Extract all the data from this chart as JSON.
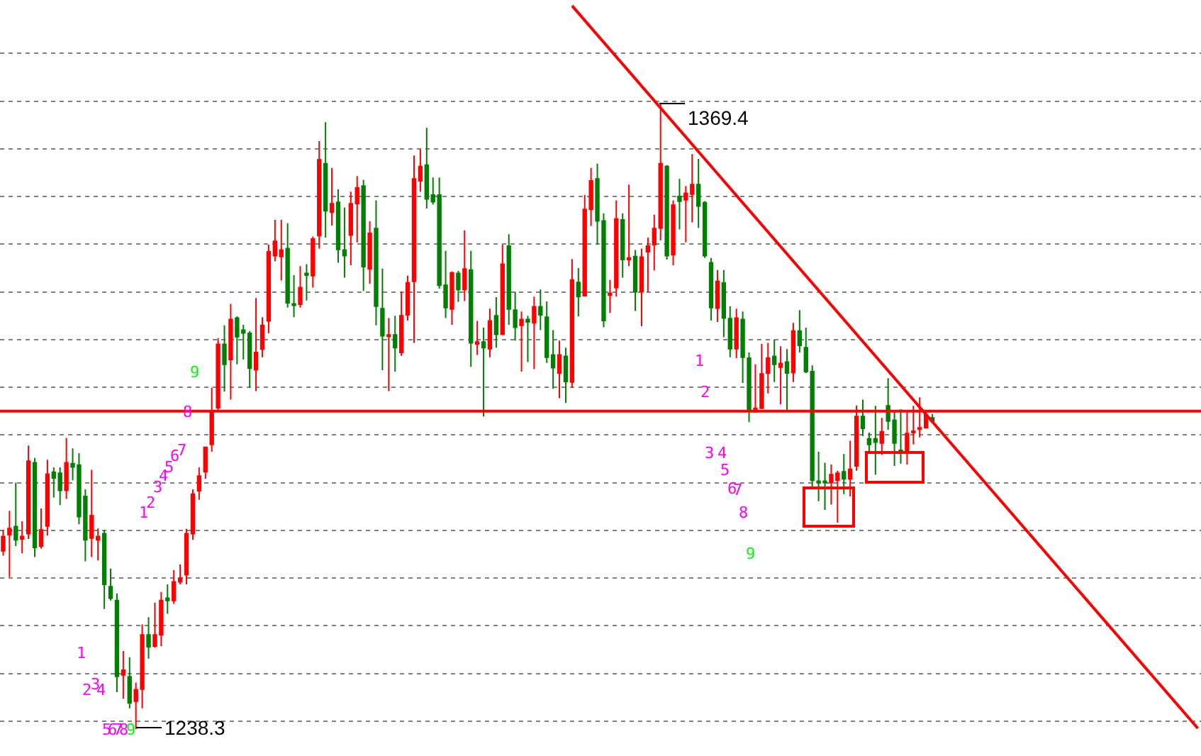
{
  "chart_data": {
    "type": "candlestick",
    "categories": [
      null,
      null,
      null,
      null,
      null,
      null,
      null,
      null,
      null,
      null,
      null,
      null,
      null,
      null,
      null,
      null,
      null,
      null,
      null,
      null,
      null,
      null,
      null,
      null,
      null,
      null,
      null,
      null,
      null,
      null,
      null,
      null,
      null,
      null,
      null,
      null,
      null,
      null,
      null,
      null,
      null,
      null,
      null,
      null,
      null,
      null,
      null,
      null,
      null,
      null,
      null,
      null,
      null,
      null,
      null,
      null,
      null,
      null,
      null,
      null,
      null,
      null,
      null,
      null,
      null,
      null,
      null,
      null,
      null,
      null,
      null,
      null,
      null,
      null,
      null,
      null,
      null,
      null,
      null,
      null,
      null,
      null,
      null,
      null,
      null,
      null,
      null,
      null,
      null,
      null,
      null,
      null,
      null,
      null,
      null,
      null,
      null,
      null,
      null,
      null,
      null,
      null,
      null,
      null,
      null,
      null,
      null,
      null,
      null,
      null,
      null,
      null,
      null,
      null,
      null,
      null,
      null,
      null,
      null,
      null,
      null,
      null,
      null,
      null,
      null,
      null,
      null,
      null,
      null,
      null,
      null,
      null,
      null,
      null,
      null,
      null,
      null,
      null,
      null,
      null,
      null,
      null,
      null,
      null,
      null,
      null,
      null,
      null,
      null,
      null,
      null,
      null,
      null,
      null,
      null,
      null,
      null,
      null,
      null,
      null,
      null,
      null,
      null,
      null,
      null,
      null,
      null,
      null,
      null,
      null,
      null,
      null,
      null,
      null,
      null,
      null,
      null,
      null,
      null,
      null,
      null,
      null,
      null,
      null,
      null,
      null,
      null,
      null,
      null,
      null
    ],
    "ylim": [
      1232.7,
      1391.2
    ],
    "yticks": [
      {
        "value": 1240,
        "label": null
      },
      {
        "value": 1250,
        "label": null
      },
      {
        "value": 1260,
        "label": null
      },
      {
        "value": 1270,
        "label": null
      },
      {
        "value": 1280,
        "label": null
      },
      {
        "value": 1290,
        "label": null
      },
      {
        "value": 1300,
        "label": null
      },
      {
        "value": 1310,
        "label": null
      },
      {
        "value": 1320,
        "label": null
      },
      {
        "value": 1330,
        "label": null
      },
      {
        "value": 1340,
        "label": null
      },
      {
        "value": 1350,
        "label": null
      },
      {
        "value": 1360,
        "label": null
      },
      {
        "value": 1370,
        "label": null
      },
      {
        "value": 1380,
        "label": null
      }
    ],
    "grid": "y",
    "colors": [
      "#ff0000",
      "#ff0000",
      "#008000",
      "#ff0000",
      "#ff0000",
      "#008000",
      "#ff0000",
      "#ff0000",
      "#008000",
      "#008000",
      "#ff0000",
      "#008000",
      "#008000",
      "#008000",
      "#ff0000",
      "#ff0000",
      "#008000",
      "#008000",
      "#008000",
      "#ff0000",
      "#008000",
      "#ff0000",
      "#ff0000",
      "#008000",
      "#ff0000",
      "#ff0000",
      "#008000",
      "#ff0000",
      "#ff0000",
      "#ff0000",
      "#ff0000",
      "#ff0000",
      "#ff0000",
      "#ff0000",
      "#ff0000",
      "#008000",
      "#ff0000",
      "#008000",
      "#008000",
      "#008000",
      "#ff0000",
      "#ff0000",
      "#ff0000",
      "#ff0000",
      "#ff0000",
      "#008000",
      "#008000",
      "#ff0000",
      "#008000",
      "#ff0000",
      "#ff0000",
      "#008000",
      "#ff0000",
      "#008000",
      "#008000",
      "#ff0000",
      "#ff0000",
      "#008000",
      "#ff0000",
      "#008000",
      "#008000",
      "#ff0000",
      "#008000",
      "#ff0000",
      "#ff0000",
      "#ff0000",
      "#ff0000",
      "#008000",
      "#008000",
      "#008000",
      "#008000",
      "#ff0000",
      "#008000",
      "#ff0000",
      "#008000",
      "#ff0000",
      "#008000",
      "#ff0000",
      "#008000",
      "#ff0000",
      "#008000",
      "#008000",
      "#ff0000",
      "#008000",
      "#ff0000",
      "#008000",
      "#008000",
      "#008000",
      "#ff0000",
      "#008000",
      "#ff0000",
      "#008000",
      "#ff0000",
      "#ff0000",
      "#008000",
      "#008000",
      "#ff0000",
      "#ff0000",
      "#008000",
      "#ff0000",
      "#008000",
      "#ff0000",
      "#ff0000",
      "#ff0000",
      "#ff0000",
      "#008000",
      "#ff0000",
      "#008000",
      "#ff0000",
      "#ff0000",
      "#008000",
      "#008000",
      "#008000",
      "#ff0000",
      "#008000",
      "#008000",
      "#ff0000",
      "#008000",
      "#008000",
      "#ff0000",
      "#ff0000",
      "#ff0000",
      "#008000",
      "#ff0000",
      "#008000",
      "#ff0000",
      "#008000",
      "#008000",
      "#008000",
      "#008000",
      "#008000",
      "#ff0000",
      "#ff0000",
      "#008000",
      "#ff0000",
      "#ff0000",
      "#008000",
      "#008000",
      "#008000",
      "#ff0000",
      "#008000",
      "#008000",
      "#008000",
      "#ff0000",
      "#ff0000",
      "#ff0000",
      "#ff0000",
      "#008000",
      null,
      null,
      null,
      null,
      null,
      null,
      null,
      null,
      null,
      null,
      null,
      null,
      null,
      null,
      null,
      null,
      null,
      null,
      null,
      null,
      null,
      null,
      null,
      null,
      null,
      null,
      null,
      null,
      null,
      null,
      null,
      null,
      null,
      null,
      null,
      null,
      null,
      null,
      null,
      null,
      null,
      null
    ],
    "ohlc": [
      [
        1275.7,
        1280.1,
        1274.7,
        1278.7
      ],
      [
        1279.1,
        1284.1,
        1270.2,
        1280.4
      ],
      [
        1280.8,
        1290.0,
        1276.7,
        1278.0
      ],
      [
        1278.2,
        1281.9,
        1275.2,
        1278.7
      ],
      [
        1279.3,
        1297.8,
        1278.2,
        1294.5
      ],
      [
        1294.2,
        1295.2,
        1274.4,
        1276.4
      ],
      [
        1276.7,
        1284.6,
        1276.2,
        1280.1
      ],
      [
        1280.9,
        1294.8,
        1278.9,
        1291.8
      ],
      [
        1292.2,
        1293.2,
        1286.9,
        1291.0
      ],
      [
        1292.0,
        1293.2,
        1285.3,
        1288.4
      ],
      [
        1288.4,
        1299.4,
        1286.6,
        1294.2
      ],
      [
        1294.0,
        1297.2,
        1290.5,
        1293.3
      ],
      [
        1293.7,
        1296.2,
        1281.3,
        1282.9
      ],
      [
        1287.1,
        1288.6,
        1273.5,
        1278.0
      ],
      [
        1278.4,
        1292.7,
        1274.4,
        1283.1
      ],
      [
        1278.0,
        1280.4,
        1273.7,
        1278.7
      ],
      [
        1279.3,
        1280.1,
        1263.5,
        1268.7
      ],
      [
        1268.2,
        1272.0,
        1265.3,
        1265.8
      ],
      [
        1265.3,
        1266.8,
        1246.1,
        1249.4
      ],
      [
        1249.7,
        1254.7,
        1244.7,
        1250.7
      ],
      [
        1249.3,
        1253.4,
        1242.7,
        1243.8
      ],
      [
        1244.2,
        1248.1,
        1238.3,
        1246.6
      ],
      [
        1246.7,
        1260.3,
        1242.7,
        1258.1
      ],
      [
        1258.1,
        1261.8,
        1253.1,
        1255.6
      ],
      [
        1255.7,
        1264.8,
        1255.4,
        1258.1
      ],
      [
        1258.1,
        1267.1,
        1255.7,
        1265.3
      ],
      [
        1265.8,
        1268.7,
        1262.5,
        1265.3
      ],
      [
        1265.3,
        1271.7,
        1264.6,
        1269.2
      ],
      [
        1269.2,
        1272.9,
        1268.7,
        1270.0
      ],
      [
        1270.7,
        1280.3,
        1268.7,
        1279.3
      ],
      [
        1279.3,
        1288.6,
        1278.0,
        1287.6
      ],
      [
        1288.3,
        1293.2,
        1286.4,
        1291.4
      ],
      [
        1292.3,
        1297.4,
        1290.8,
        1297.4
      ],
      [
        1298.0,
        1309.9,
        1296.5,
        1304.9
      ],
      [
        1305.7,
        1320.3,
        1304.9,
        1319.0
      ],
      [
        1319.0,
        1323.0,
        1309.1,
        1314.8
      ],
      [
        1315.8,
        1327.5,
        1307.4,
        1324.2
      ],
      [
        1324.5,
        1324.9,
        1314.8,
        1320.6
      ],
      [
        1322.0,
        1323.1,
        1315.8,
        1321.4
      ],
      [
        1321.3,
        1321.8,
        1309.9,
        1314.0
      ],
      [
        1313.7,
        1328.7,
        1309.2,
        1317.3
      ],
      [
        1318.0,
        1324.7,
        1316.3,
        1323.0
      ],
      [
        1323.9,
        1339.9,
        1321.3,
        1338.4
      ],
      [
        1337.6,
        1345.1,
        1336.4,
        1340.6
      ],
      [
        1337.4,
        1345.1,
        1332.4,
        1338.8
      ],
      [
        1339.1,
        1344.4,
        1326.7,
        1327.7
      ],
      [
        1327.5,
        1333.5,
        1324.7,
        1327.2
      ],
      [
        1327.4,
        1335.4,
        1326.7,
        1330.9
      ],
      [
        1333.9,
        1335.8,
        1328.2,
        1333.5
      ],
      [
        1333.4,
        1341.6,
        1330.9,
        1341.1
      ],
      [
        1341.8,
        1361.6,
        1339.1,
        1357.7
      ],
      [
        1356.9,
        1365.6,
        1341.4,
        1347.0
      ],
      [
        1346.7,
        1356.0,
        1343.9,
        1348.5
      ],
      [
        1348.8,
        1351.5,
        1336.1,
        1338.9
      ],
      [
        1338.8,
        1347.7,
        1333.0,
        1337.6
      ],
      [
        1341.9,
        1351.0,
        1335.6,
        1348.5
      ],
      [
        1348.5,
        1354.3,
        1340.4,
        1351.8
      ],
      [
        1352.2,
        1353.5,
        1330.2,
        1335.3
      ],
      [
        1334.8,
        1344.8,
        1331.7,
        1342.3
      ],
      [
        1343.3,
        1349.2,
        1323.0,
        1327.0
      ],
      [
        1326.5,
        1334.9,
        1313.6,
        1320.8
      ],
      [
        1320.7,
        1324.5,
        1309.2,
        1321.0
      ],
      [
        1321.0,
        1325.0,
        1313.3,
        1318.3
      ],
      [
        1317.3,
        1330.0,
        1316.6,
        1325.0
      ],
      [
        1325.2,
        1333.4,
        1324.0,
        1331.9
      ],
      [
        1332.2,
        1358.6,
        1319.3,
        1353.7
      ],
      [
        1353.3,
        1359.9,
        1351.0,
        1356.3
      ],
      [
        1356.6,
        1364.4,
        1347.5,
        1349.5
      ],
      [
        1350.3,
        1354.0,
        1348.3,
        1348.9
      ],
      [
        1350.3,
        1354.0,
        1330.7,
        1331.4
      ],
      [
        1331.4,
        1338.6,
        1324.5,
        1326.7
      ],
      [
        1326.4,
        1334.3,
        1323.1,
        1334.0
      ],
      [
        1333.9,
        1334.4,
        1327.9,
        1330.5
      ],
      [
        1330.5,
        1342.9,
        1328.1,
        1334.8
      ],
      [
        1334.6,
        1338.6,
        1314.3,
        1319.3
      ],
      [
        1319.1,
        1323.9,
        1316.8,
        1319.5
      ],
      [
        1319.5,
        1322.5,
        1303.9,
        1318.3
      ],
      [
        1318.1,
        1326.5,
        1316.3,
        1323.9
      ],
      [
        1325.0,
        1328.9,
        1318.3,
        1321.1
      ],
      [
        1321.1,
        1339.9,
        1321.1,
        1335.8
      ],
      [
        1339.6,
        1342.1,
        1323.1,
        1326.4
      ],
      [
        1326.2,
        1330.0,
        1319.8,
        1322.6
      ],
      [
        1323.0,
        1325.9,
        1313.3,
        1324.2
      ],
      [
        1324.2,
        1325.0,
        1315.3,
        1323.7
      ],
      [
        1323.5,
        1329.0,
        1313.8,
        1326.9
      ],
      [
        1326.9,
        1330.5,
        1322.0,
        1325.2
      ],
      [
        1324.7,
        1328.0,
        1315.1,
        1316.3
      ],
      [
        1316.8,
        1322.0,
        1309.7,
        1314.1
      ],
      [
        1313.0,
        1319.8,
        1307.7,
        1316.8
      ],
      [
        1316.5,
        1318.3,
        1306.7,
        1311.2
      ],
      [
        1311.1,
        1336.9,
        1309.9,
        1332.5
      ],
      [
        1332.0,
        1335.0,
        1324.9,
        1329.0
      ],
      [
        1329.2,
        1350.3,
        1329.2,
        1347.3
      ],
      [
        1347.3,
        1356.0,
        1343.8,
        1353.3
      ],
      [
        1353.7,
        1356.9,
        1339.9,
        1344.9
      ],
      [
        1344.9,
        1346.5,
        1322.6,
        1324.0
      ],
      [
        1329.3,
        1332.5,
        1325.6,
        1329.7
      ],
      [
        1330.9,
        1349.2,
        1329.0,
        1345.3
      ],
      [
        1345.1,
        1346.5,
        1333.0,
        1336.8
      ],
      [
        1336.8,
        1352.5,
        1335.4,
        1337.1
      ],
      [
        1337.4,
        1338.8,
        1326.0,
        1330.0
      ],
      [
        1330.0,
        1339.1,
        1322.8,
        1337.3
      ],
      [
        1338.4,
        1341.4,
        1330.0,
        1339.6
      ],
      [
        1339.9,
        1346.2,
        1334.5,
        1343.3
      ],
      [
        1343.4,
        1369.4,
        1340.8,
        1356.9
      ],
      [
        1356.3,
        1356.6,
        1336.8,
        1337.6
      ],
      [
        1337.8,
        1349.2,
        1335.6,
        1348.2
      ],
      [
        1350.0,
        1353.7,
        1343.1,
        1349.0
      ],
      [
        1349.3,
        1352.2,
        1340.4,
        1350.7
      ],
      [
        1350.5,
        1358.9,
        1344.6,
        1352.5
      ],
      [
        1352.5,
        1357.9,
        1343.4,
        1348.0
      ],
      [
        1348.7,
        1349.0,
        1337.1,
        1337.6
      ],
      [
        1336.1,
        1337.1,
        1324.0,
        1326.7
      ],
      [
        1326.6,
        1334.6,
        1323.7,
        1332.2
      ],
      [
        1331.9,
        1334.6,
        1320.5,
        1324.5
      ],
      [
        1324.4,
        1327.0,
        1316.3,
        1318.1
      ],
      [
        1318.1,
        1326.5,
        1316.1,
        1324.5
      ],
      [
        1324.2,
        1325.9,
        1310.9,
        1316.3
      ],
      [
        1316.1,
        1317.3,
        1302.7,
        1305.1
      ],
      [
        1304.9,
        1314.8,
        1304.9,
        1305.6
      ],
      [
        1305.6,
        1319.1,
        1305.6,
        1312.8
      ],
      [
        1313.0,
        1319.3,
        1308.7,
        1316.1
      ],
      [
        1316.5,
        1320.0,
        1311.1,
        1314.8
      ],
      [
        1314.2,
        1318.6,
        1306.4,
        1315.0
      ],
      [
        1315.3,
        1318.0,
        1304.9,
        1313.0
      ],
      [
        1313.1,
        1323.5,
        1311.1,
        1321.8
      ],
      [
        1321.8,
        1326.2,
        1317.3,
        1318.8
      ],
      [
        1318.3,
        1322.5,
        1313.0,
        1313.3
      ],
      [
        1313.3,
        1314.6,
        1289.1,
        1290.5
      ],
      [
        1290.3,
        1296.5,
        1286.1,
        1290.0
      ],
      [
        1290.3,
        1294.2,
        1284.3,
        1290.0
      ],
      [
        1290.0,
        1293.8,
        1285.4,
        1291.7
      ],
      [
        1290.5,
        1292.5,
        1281.6,
        1292.0
      ],
      [
        1292.3,
        1296.0,
        1287.6,
        1290.8
      ],
      [
        1290.8,
        1298.8,
        1287.1,
        1292.8
      ],
      [
        1293.5,
        1306.2,
        1292.5,
        1303.9
      ],
      [
        1303.9,
        1307.4,
        1299.8,
        1301.4
      ],
      [
        1299.2,
        1300.5,
        1296.2,
        1298.0
      ],
      [
        1299.2,
        1306.1,
        1291.7,
        1298.5
      ],
      [
        1298.3,
        1303.6,
        1295.8,
        1300.7
      ],
      [
        1306.1,
        1311.9,
        1301.1,
        1302.9
      ],
      [
        1303.1,
        1304.9,
        1293.5,
        1298.3
      ],
      [
        1296.8,
        1305.4,
        1294.0,
        1296.3
      ],
      [
        1296.8,
        1304.9,
        1293.8,
        1300.3
      ],
      [
        1300.5,
        1306.1,
        1298.0,
        1300.8
      ],
      [
        1301.2,
        1307.9,
        1299.5,
        1301.5
      ],
      [
        1301.5,
        1305.2,
        1301.5,
        1304.2
      ],
      [
        1303.6,
        1304.4,
        1302.7,
        1302.9
      ],
      null,
      null,
      null,
      null,
      null,
      null,
      null,
      null,
      null,
      null,
      null,
      null,
      null,
      null,
      null,
      null,
      null,
      null,
      null,
      null,
      null,
      null,
      null,
      null,
      null,
      null,
      null,
      null,
      null,
      null,
      null,
      null,
      null,
      null,
      null,
      null,
      null,
      null,
      null,
      null,
      null,
      null
    ],
    "series": [
      {
        "type": "line",
        "color": "#ff0000",
        "values": [
          null,
          null,
          null,
          null,
          null,
          null,
          null,
          null,
          null,
          null,
          null,
          null,
          null,
          null,
          null,
          null,
          null,
          null,
          null,
          null,
          null,
          null,
          null,
          null,
          null,
          null,
          null,
          null,
          null,
          null,
          null,
          null,
          null,
          null,
          null,
          null,
          null,
          null,
          null,
          null,
          null,
          null,
          null,
          null,
          null,
          null,
          null,
          null,
          null,
          null,
          null,
          null,
          null,
          null,
          null,
          null,
          null,
          null,
          null,
          null,
          null,
          null,
          null,
          null,
          null,
          null,
          null,
          null,
          null,
          null,
          null,
          null,
          null,
          null,
          null,
          null,
          null,
          null,
          null,
          null,
          null,
          null,
          null,
          null,
          null,
          null,
          null,
          null,
          null,
          null,
          1390.0,
          null,
          null,
          null,
          null,
          null,
          null,
          null,
          null,
          null,
          null,
          null,
          null,
          null,
          null,
          null,
          null,
          null,
          null,
          null,
          null,
          null,
          null,
          null,
          null,
          null,
          null,
          null,
          null,
          null,
          null,
          null,
          null,
          null,
          null,
          null,
          null,
          null,
          null,
          null,
          null,
          null,
          null,
          null,
          null,
          null,
          null,
          null,
          null,
          null,
          null,
          null,
          null,
          null,
          null,
          null,
          null,
          null,
          null,
          null,
          null,
          null,
          null,
          null,
          null,
          null,
          null,
          null,
          null,
          null,
          null,
          null,
          null,
          null,
          null,
          null,
          null,
          null,
          null,
          null,
          null,
          null,
          null,
          null,
          null,
          null,
          null,
          null,
          null,
          null,
          null,
          null,
          null,
          null,
          null,
          null,
          null,
          null,
          null,
          1238.5
        ]
      }
    ],
    "ref_lines": [
      {
        "axis": "y",
        "value": 1305,
        "color": "#ff0000"
      }
    ],
    "annotations": [
      "1369.4",
      "1238.3",
      "1",
      "2",
      "3",
      "4",
      "5",
      "6",
      "7",
      "8",
      "9",
      "1",
      "2",
      "3",
      "4",
      "5",
      "6",
      "7",
      "8",
      "9",
      "1",
      "2",
      "3",
      "4",
      "5",
      "6",
      "7",
      "8",
      "9"
    ]
  }
}
